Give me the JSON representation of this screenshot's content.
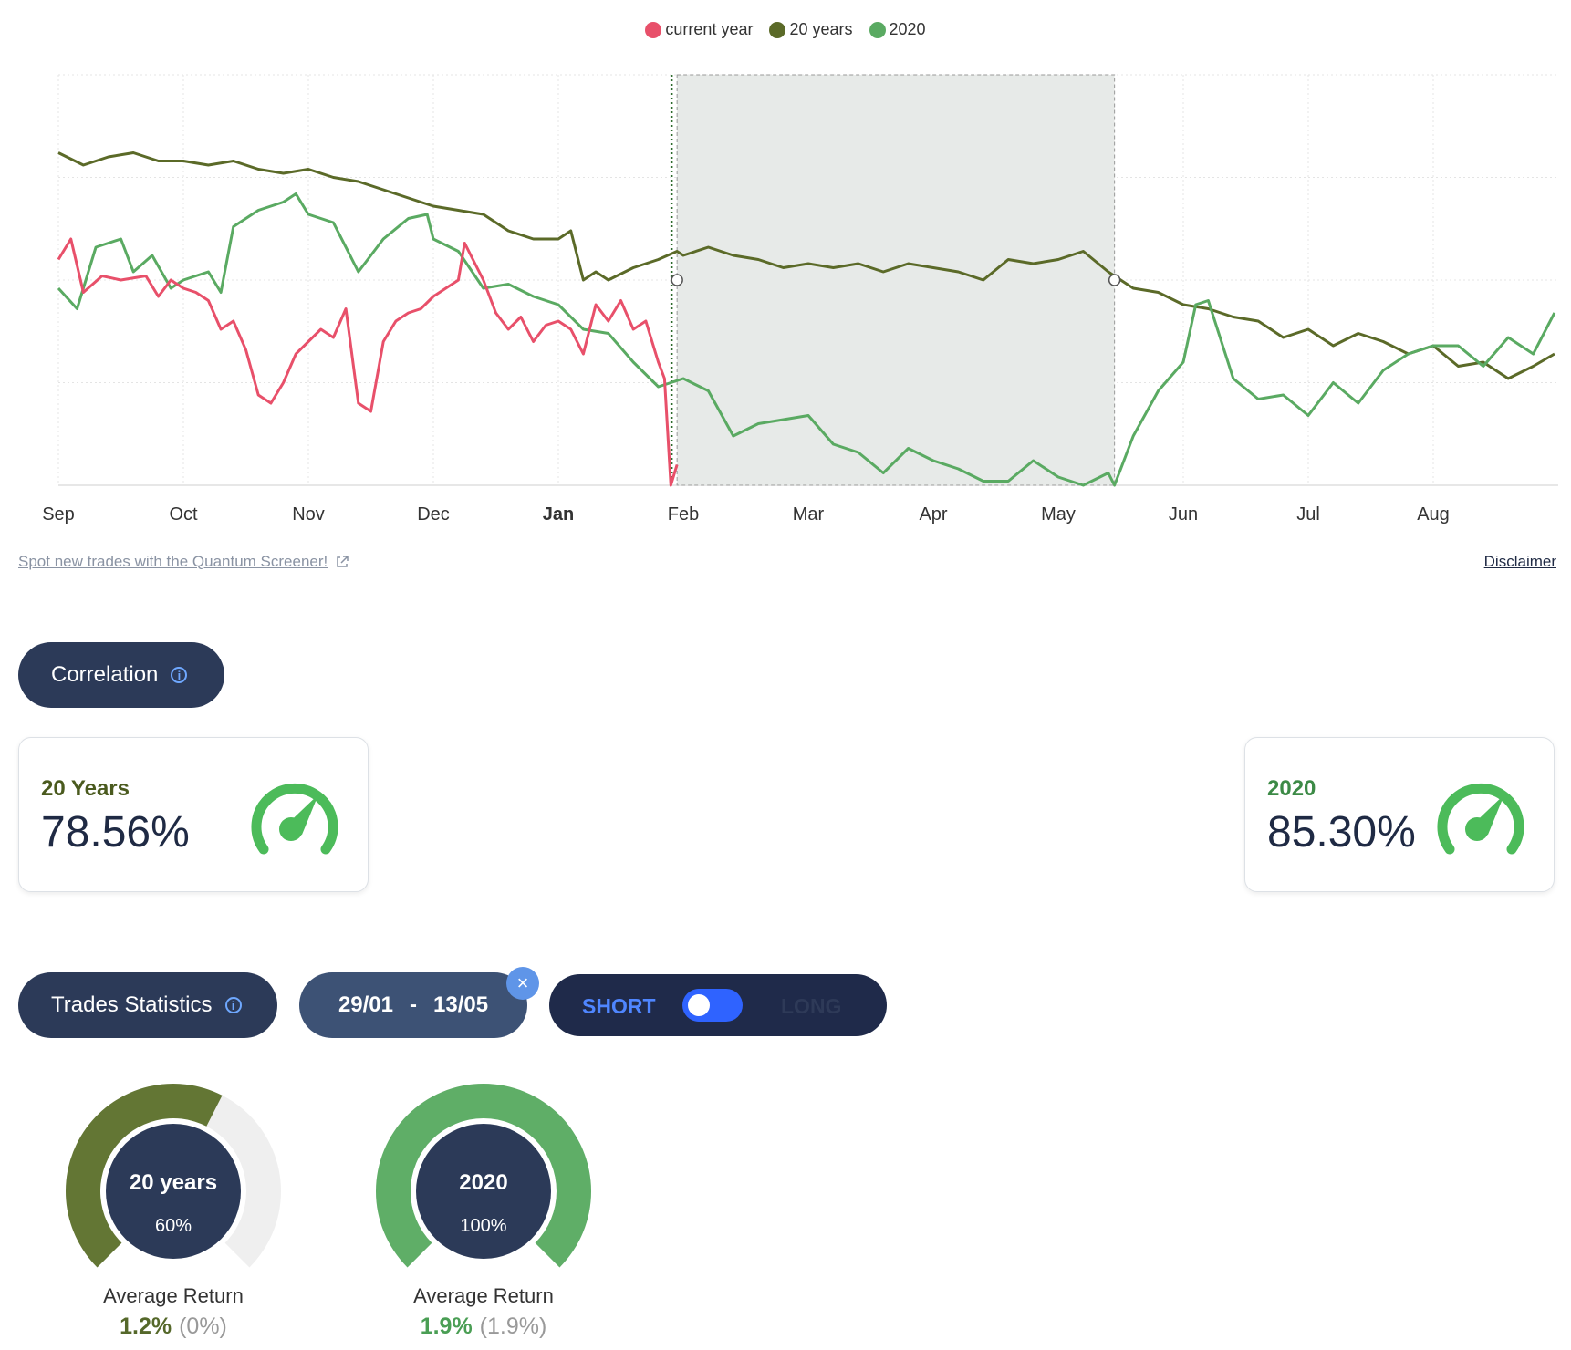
{
  "legend": [
    {
      "label": "current year",
      "color": "#e8506a"
    },
    {
      "label": "20 years",
      "color": "#5b6a28"
    },
    {
      "label": "2020",
      "color": "#5aaa62"
    }
  ],
  "chart_data": {
    "type": "line",
    "x_axis_ticks": [
      "Sep",
      "Oct",
      "Nov",
      "Dec",
      "Jan",
      "Feb",
      "Mar",
      "Apr",
      "May",
      "Jun",
      "Jul",
      "Aug"
    ],
    "bold_tick": "Jan",
    "selection": {
      "start": "29/01",
      "end": "13/05"
    },
    "grid": true,
    "series": [
      {
        "name": "20 years",
        "color": "#5b6a28",
        "x": [
          0,
          0.2,
          0.4,
          0.6,
          0.8,
          1.0,
          1.2,
          1.4,
          1.6,
          1.8,
          2.0,
          2.2,
          2.4,
          2.6,
          2.8,
          3.0,
          3.2,
          3.4,
          3.6,
          3.8,
          4.0,
          4.1,
          4.2,
          4.3,
          4.4,
          4.6,
          4.8,
          4.95,
          5.0,
          5.2,
          5.4,
          5.6,
          5.8,
          6.0,
          6.2,
          6.4,
          6.6,
          6.8,
          7.0,
          7.2,
          7.4,
          7.6,
          7.8,
          8.0,
          8.2,
          8.4,
          8.6,
          8.8,
          9.0,
          9.2,
          9.4,
          9.6,
          9.8,
          10.0,
          10.2,
          10.4,
          10.6,
          10.8,
          11.0,
          11.2,
          11.4,
          11.6,
          11.8,
          11.97
        ],
        "y": [
          0.81,
          0.78,
          0.8,
          0.81,
          0.79,
          0.79,
          0.78,
          0.79,
          0.77,
          0.76,
          0.77,
          0.75,
          0.74,
          0.72,
          0.7,
          0.68,
          0.67,
          0.66,
          0.62,
          0.6,
          0.6,
          0.62,
          0.5,
          0.52,
          0.5,
          0.53,
          0.55,
          0.57,
          0.56,
          0.58,
          0.56,
          0.55,
          0.53,
          0.54,
          0.53,
          0.54,
          0.52,
          0.54,
          0.53,
          0.52,
          0.5,
          0.55,
          0.54,
          0.55,
          0.57,
          0.52,
          0.48,
          0.47,
          0.44,
          0.43,
          0.41,
          0.4,
          0.36,
          0.38,
          0.34,
          0.37,
          0.35,
          0.32,
          0.34,
          0.29,
          0.3,
          0.26,
          0.29,
          0.32
        ]
      },
      {
        "name": "2020",
        "color": "#5aaa62",
        "x": [
          0,
          0.15,
          0.3,
          0.5,
          0.6,
          0.75,
          0.9,
          1.0,
          1.2,
          1.3,
          1.4,
          1.6,
          1.8,
          1.9,
          2.0,
          2.2,
          2.4,
          2.6,
          2.8,
          2.95,
          3.0,
          3.2,
          3.4,
          3.6,
          3.8,
          4.0,
          4.2,
          4.4,
          4.6,
          4.8,
          5.0,
          5.2,
          5.4,
          5.6,
          5.8,
          6.0,
          6.2,
          6.4,
          6.6,
          6.8,
          7.0,
          7.2,
          7.4,
          7.6,
          7.8,
          8.0,
          8.2,
          8.4,
          8.45,
          8.6,
          8.8,
          9.0,
          9.1,
          9.2,
          9.4,
          9.6,
          9.8,
          10.0,
          10.2,
          10.4,
          10.6,
          10.8,
          11.0,
          11.2,
          11.4,
          11.6,
          11.8,
          11.97
        ],
        "y": [
          0.48,
          0.43,
          0.58,
          0.6,
          0.52,
          0.56,
          0.48,
          0.5,
          0.52,
          0.47,
          0.63,
          0.67,
          0.69,
          0.71,
          0.66,
          0.64,
          0.52,
          0.6,
          0.65,
          0.66,
          0.6,
          0.57,
          0.48,
          0.49,
          0.46,
          0.44,
          0.38,
          0.37,
          0.3,
          0.24,
          0.26,
          0.23,
          0.12,
          0.15,
          0.16,
          0.17,
          0.1,
          0.08,
          0.03,
          0.09,
          0.06,
          0.04,
          0.01,
          0.01,
          0.06,
          0.02,
          0.0,
          0.03,
          0.0,
          0.12,
          0.23,
          0.3,
          0.44,
          0.45,
          0.26,
          0.21,
          0.22,
          0.17,
          0.25,
          0.2,
          0.28,
          0.32,
          0.34,
          0.34,
          0.29,
          0.36,
          0.32,
          0.42
        ]
      },
      {
        "name": "current year",
        "color": "#e8506a",
        "x": [
          0,
          0.1,
          0.2,
          0.35,
          0.5,
          0.7,
          0.8,
          0.9,
          1.0,
          1.1,
          1.2,
          1.3,
          1.4,
          1.5,
          1.6,
          1.7,
          1.8,
          1.9,
          2.0,
          2.1,
          2.2,
          2.3,
          2.4,
          2.5,
          2.6,
          2.7,
          2.8,
          2.9,
          3.0,
          3.1,
          3.2,
          3.25,
          3.3,
          3.4,
          3.5,
          3.6,
          3.7,
          3.8,
          3.9,
          4.0,
          4.1,
          4.2,
          4.3,
          4.4,
          4.5,
          4.6,
          4.7,
          4.8,
          4.85,
          4.9,
          4.95
        ],
        "y": [
          0.55,
          0.6,
          0.47,
          0.51,
          0.5,
          0.51,
          0.46,
          0.5,
          0.48,
          0.47,
          0.45,
          0.38,
          0.4,
          0.33,
          0.22,
          0.2,
          0.25,
          0.32,
          0.35,
          0.38,
          0.36,
          0.43,
          0.2,
          0.18,
          0.35,
          0.4,
          0.42,
          0.43,
          0.46,
          0.48,
          0.5,
          0.59,
          0.56,
          0.5,
          0.42,
          0.38,
          0.41,
          0.35,
          0.39,
          0.4,
          0.38,
          0.32,
          0.44,
          0.4,
          0.45,
          0.38,
          0.4,
          0.3,
          0.26,
          0.0,
          0.05
        ]
      }
    ]
  },
  "links": {
    "screener": "Spot new trades with the Quantum Screener!",
    "disclaimer": "Disclaimer"
  },
  "correlation": {
    "title": "Correlation",
    "cards": [
      {
        "label": "20 Years",
        "value": "78.56%",
        "label_color": "#4a5a1e"
      },
      {
        "label": "2020",
        "value": "85.30%",
        "label_color": "#3c8a46"
      }
    ]
  },
  "trades": {
    "title": "Trades Statistics",
    "date_start": "29/01",
    "date_sep": "-",
    "date_end": "13/05",
    "close_glyph": "×",
    "short_label": "SHORT",
    "long_label": "LONG",
    "donuts": [
      {
        "title": "20 years",
        "percent_label": "60%",
        "percent": 0.6,
        "color": "#637634",
        "avg_label": "Average Return",
        "avg_value": "1.2%",
        "avg_sub": "(0%)",
        "value_color": "#55682a"
      },
      {
        "title": "2020",
        "percent_label": "100%",
        "percent": 1.0,
        "color": "#5fae67",
        "avg_label": "Average Return",
        "avg_value": "1.9%",
        "avg_sub": "(1.9%)",
        "value_color": "#4a9e54"
      }
    ]
  }
}
